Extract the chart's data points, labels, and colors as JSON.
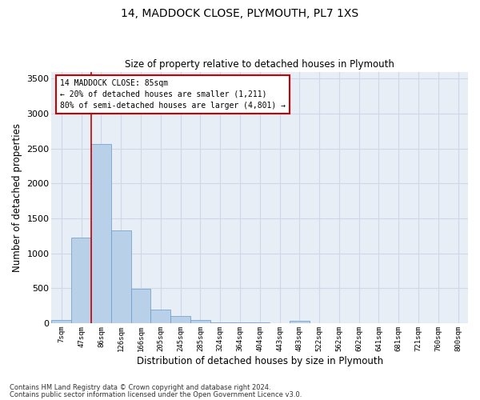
{
  "title1": "14, MADDOCK CLOSE, PLYMOUTH, PL7 1XS",
  "title2": "Size of property relative to detached houses in Plymouth",
  "xlabel": "Distribution of detached houses by size in Plymouth",
  "ylabel": "Number of detached properties",
  "categories": [
    "7sqm",
    "47sqm",
    "86sqm",
    "126sqm",
    "166sqm",
    "205sqm",
    "245sqm",
    "285sqm",
    "324sqm",
    "364sqm",
    "404sqm",
    "443sqm",
    "483sqm",
    "522sqm",
    "562sqm",
    "602sqm",
    "641sqm",
    "681sqm",
    "721sqm",
    "760sqm",
    "800sqm"
  ],
  "values": [
    50,
    1220,
    2560,
    1330,
    490,
    190,
    100,
    45,
    15,
    5,
    5,
    0,
    30,
    0,
    0,
    0,
    0,
    0,
    0,
    0,
    0
  ],
  "bar_color": "#b8d0e8",
  "bar_edge_color": "#6699cc",
  "grid_color": "#d0d8e8",
  "background_color": "#e8eef6",
  "annotation_box_text": "14 MADDOCK CLOSE: 85sqm\n← 20% of detached houses are smaller (1,211)\n80% of semi-detached houses are larger (4,801) →",
  "annotation_box_color": "#cc0000",
  "vline_color": "#cc0000",
  "ylim": [
    0,
    3600
  ],
  "yticks": [
    0,
    500,
    1000,
    1500,
    2000,
    2500,
    3000,
    3500
  ],
  "footer1": "Contains HM Land Registry data © Crown copyright and database right 2024.",
  "footer2": "Contains public sector information licensed under the Open Government Licence v3.0."
}
